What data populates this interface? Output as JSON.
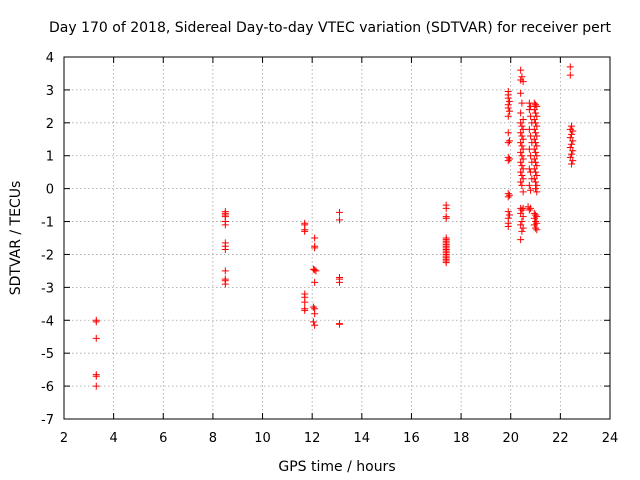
{
  "chart_data": {
    "type": "scatter",
    "title": "Day 170 of 2018, Sidereal Day-to-day VTEC variation (SDTVAR) for receiver pert",
    "xlabel": "GPS time / hours",
    "ylabel": "SDTVAR / TECUs",
    "xlim": [
      2,
      24
    ],
    "ylim": [
      -7,
      4
    ],
    "xticks": [
      2,
      4,
      6,
      8,
      10,
      12,
      14,
      16,
      18,
      20,
      22,
      24
    ],
    "yticks": [
      -7,
      -6,
      -5,
      -4,
      -3,
      -2,
      -1,
      0,
      1,
      2,
      3,
      4
    ],
    "grid": true,
    "marker": "+",
    "color": "#ff0000",
    "series": [
      {
        "name": "SDTVAR",
        "points": [
          [
            3.3,
            -4.0
          ],
          [
            3.3,
            -4.05
          ],
          [
            3.3,
            -4.55
          ],
          [
            3.3,
            -5.65
          ],
          [
            3.3,
            -5.7
          ],
          [
            3.3,
            -6.0
          ],
          [
            8.5,
            -0.7
          ],
          [
            8.5,
            -0.75
          ],
          [
            8.5,
            -0.8
          ],
          [
            8.5,
            -0.85
          ],
          [
            8.5,
            -1.0
          ],
          [
            8.5,
            -1.1
          ],
          [
            8.5,
            -1.65
          ],
          [
            8.5,
            -1.75
          ],
          [
            8.5,
            -1.85
          ],
          [
            8.5,
            -2.5
          ],
          [
            8.5,
            -2.75
          ],
          [
            8.5,
            -2.8
          ],
          [
            8.5,
            -2.9
          ],
          [
            11.7,
            -1.05
          ],
          [
            11.7,
            -1.1
          ],
          [
            11.7,
            -1.25
          ],
          [
            11.7,
            -1.3
          ],
          [
            11.7,
            -3.2
          ],
          [
            11.7,
            -3.3
          ],
          [
            11.7,
            -3.45
          ],
          [
            11.7,
            -3.65
          ],
          [
            11.7,
            -3.7
          ],
          [
            12.1,
            -1.5
          ],
          [
            12.1,
            -1.75
          ],
          [
            12.1,
            -1.8
          ],
          [
            12.05,
            -2.45
          ],
          [
            12.1,
            -2.47
          ],
          [
            12.15,
            -2.5
          ],
          [
            12.1,
            -2.85
          ],
          [
            12.05,
            -3.6
          ],
          [
            12.1,
            -3.65
          ],
          [
            12.1,
            -3.8
          ],
          [
            12.05,
            -4.05
          ],
          [
            12.1,
            -4.15
          ],
          [
            13.1,
            -0.72
          ],
          [
            13.1,
            -0.95
          ],
          [
            13.1,
            -2.7
          ],
          [
            13.1,
            -2.75
          ],
          [
            13.1,
            -2.85
          ],
          [
            13.1,
            -4.1
          ],
          [
            13.1,
            -4.12
          ],
          [
            17.4,
            -0.5
          ],
          [
            17.4,
            -0.6
          ],
          [
            17.4,
            -0.85
          ],
          [
            17.4,
            -0.9
          ],
          [
            17.4,
            -1.5
          ],
          [
            17.4,
            -1.55
          ],
          [
            17.4,
            -1.6
          ],
          [
            17.4,
            -1.65
          ],
          [
            17.4,
            -1.7
          ],
          [
            17.4,
            -1.75
          ],
          [
            17.4,
            -1.8
          ],
          [
            17.4,
            -1.85
          ],
          [
            17.4,
            -1.9
          ],
          [
            17.4,
            -1.95
          ],
          [
            17.4,
            -2.0
          ],
          [
            17.4,
            -2.05
          ],
          [
            17.4,
            -2.1
          ],
          [
            17.4,
            -2.15
          ],
          [
            17.4,
            -2.2
          ],
          [
            17.4,
            -2.25
          ],
          [
            19.9,
            2.95
          ],
          [
            19.9,
            2.85
          ],
          [
            19.9,
            2.75
          ],
          [
            19.95,
            2.65
          ],
          [
            19.9,
            2.55
          ],
          [
            19.9,
            2.45
          ],
          [
            19.95,
            2.35
          ],
          [
            19.9,
            2.2
          ],
          [
            19.9,
            1.7
          ],
          [
            19.95,
            1.45
          ],
          [
            19.9,
            1.4
          ],
          [
            19.9,
            0.95
          ],
          [
            19.95,
            0.9
          ],
          [
            19.9,
            0.85
          ],
          [
            19.9,
            -0.15
          ],
          [
            19.95,
            -0.2
          ],
          [
            19.9,
            -0.25
          ],
          [
            19.9,
            -0.7
          ],
          [
            19.95,
            -0.8
          ],
          [
            19.9,
            -0.9
          ],
          [
            19.9,
            -1.05
          ],
          [
            19.9,
            -1.15
          ],
          [
            20.4,
            3.6
          ],
          [
            20.45,
            3.4
          ],
          [
            20.4,
            3.3
          ],
          [
            20.5,
            3.25
          ],
          [
            20.4,
            2.9
          ],
          [
            20.45,
            2.6
          ],
          [
            20.4,
            2.3
          ],
          [
            20.5,
            2.1
          ],
          [
            20.4,
            2.0
          ],
          [
            20.45,
            1.9
          ],
          [
            20.5,
            1.8
          ],
          [
            20.4,
            1.7
          ],
          [
            20.45,
            1.6
          ],
          [
            20.5,
            1.5
          ],
          [
            20.4,
            1.4
          ],
          [
            20.45,
            1.3
          ],
          [
            20.5,
            1.2
          ],
          [
            20.4,
            1.1
          ],
          [
            20.45,
            1.0
          ],
          [
            20.5,
            0.9
          ],
          [
            20.4,
            0.8
          ],
          [
            20.45,
            0.7
          ],
          [
            20.5,
            0.6
          ],
          [
            20.4,
            0.5
          ],
          [
            20.45,
            0.4
          ],
          [
            20.5,
            0.3
          ],
          [
            20.4,
            0.2
          ],
          [
            20.45,
            0.1
          ],
          [
            20.5,
            -0.1
          ],
          [
            20.4,
            -0.6
          ],
          [
            20.5,
            -0.6
          ],
          [
            20.45,
            -0.65
          ],
          [
            20.4,
            -0.75
          ],
          [
            20.5,
            -0.85
          ],
          [
            20.45,
            -1.0
          ],
          [
            20.4,
            -1.1
          ],
          [
            20.5,
            -1.2
          ],
          [
            20.45,
            -1.3
          ],
          [
            20.4,
            -1.55
          ],
          [
            20.75,
            2.6
          ],
          [
            20.8,
            2.5
          ],
          [
            20.75,
            2.4
          ],
          [
            20.8,
            2.2
          ],
          [
            20.85,
            2.0
          ],
          [
            20.75,
            1.8
          ],
          [
            20.8,
            1.6
          ],
          [
            20.85,
            1.4
          ],
          [
            20.75,
            1.2
          ],
          [
            20.8,
            1.0
          ],
          [
            20.85,
            0.8
          ],
          [
            20.75,
            0.6
          ],
          [
            20.8,
            0.5
          ],
          [
            20.85,
            0.3
          ],
          [
            20.75,
            0.1
          ],
          [
            20.8,
            -0.05
          ],
          [
            20.7,
            -0.55
          ],
          [
            20.8,
            -0.6
          ],
          [
            20.75,
            -0.65
          ],
          [
            20.95,
            2.6
          ],
          [
            21.0,
            2.55
          ],
          [
            21.05,
            2.5
          ],
          [
            20.95,
            2.4
          ],
          [
            21.0,
            2.3
          ],
          [
            21.05,
            2.2
          ],
          [
            20.95,
            2.1
          ],
          [
            21.0,
            2.0
          ],
          [
            21.05,
            1.9
          ],
          [
            20.95,
            1.8
          ],
          [
            21.0,
            1.7
          ],
          [
            21.05,
            1.6
          ],
          [
            20.95,
            1.5
          ],
          [
            21.0,
            1.4
          ],
          [
            21.05,
            1.3
          ],
          [
            20.95,
            1.2
          ],
          [
            21.0,
            1.1
          ],
          [
            21.05,
            1.0
          ],
          [
            20.95,
            0.9
          ],
          [
            21.0,
            0.8
          ],
          [
            21.05,
            0.7
          ],
          [
            20.95,
            0.6
          ],
          [
            21.0,
            0.5
          ],
          [
            21.05,
            0.4
          ],
          [
            20.95,
            0.3
          ],
          [
            21.0,
            0.2
          ],
          [
            21.05,
            0.1
          ],
          [
            21.0,
            0.0
          ],
          [
            21.05,
            -0.1
          ],
          [
            20.95,
            -0.75
          ],
          [
            21.0,
            -0.8
          ],
          [
            21.05,
            -0.85
          ],
          [
            20.95,
            -0.9
          ],
          [
            21.0,
            -1.0
          ],
          [
            21.05,
            -1.05
          ],
          [
            20.95,
            -1.1
          ],
          [
            21.0,
            -1.2
          ],
          [
            21.05,
            -1.25
          ],
          [
            22.4,
            3.7
          ],
          [
            22.4,
            3.45
          ],
          [
            22.45,
            1.9
          ],
          [
            22.4,
            1.8
          ],
          [
            22.5,
            1.75
          ],
          [
            22.45,
            1.65
          ],
          [
            22.4,
            1.55
          ],
          [
            22.5,
            1.45
          ],
          [
            22.45,
            1.35
          ],
          [
            22.4,
            1.25
          ],
          [
            22.5,
            1.15
          ],
          [
            22.45,
            1.05
          ],
          [
            22.4,
            0.95
          ],
          [
            22.5,
            0.85
          ],
          [
            22.45,
            0.75
          ]
        ]
      }
    ]
  }
}
